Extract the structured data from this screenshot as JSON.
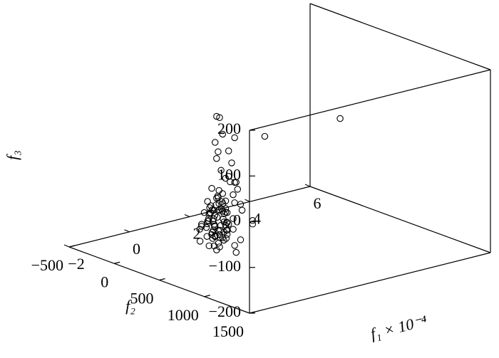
{
  "chart_data": {
    "type": "scatter3d",
    "xlabel": "f₁ × 10⁻⁴",
    "ylabel": "f₂",
    "zlabel": "f₃",
    "xlim": [
      -2,
      6
    ],
    "ylim": [
      -500,
      1500
    ],
    "zlim": [
      -200,
      200
    ],
    "xticks": [
      {
        "value": -2,
        "label": "−2"
      },
      0,
      2,
      4,
      6
    ],
    "yticks": [
      {
        "value": -500,
        "label": "−500"
      },
      0,
      500,
      1000,
      1500
    ],
    "zticks": [
      {
        "value": -200,
        "label": "−200"
      },
      {
        "value": -100,
        "label": "−100"
      },
      0,
      100,
      200
    ],
    "color": "#000000",
    "x": [
      0.4,
      0.5,
      0.6,
      0.3,
      0.7,
      0.45,
      0.55,
      0.35,
      0.65,
      0.5,
      0.25,
      0.75,
      0.4,
      0.6,
      0.5,
      0.3,
      0.7,
      0.45,
      0.55,
      0.35,
      0.8,
      0.2,
      0.6,
      0.5,
      0.4,
      0.65,
      0.3,
      0.55,
      0.45,
      0.7,
      0.5,
      0.6,
      0.35,
      0.75,
      0.25,
      0.5,
      0.4,
      0.65,
      0.55,
      0.45,
      0.8,
      0.3,
      0.6,
      0.5,
      0.7,
      0.4,
      0.55,
      0.35,
      0.65,
      0.5,
      0.9,
      1.0,
      0.1,
      0.0,
      0.2,
      0.9,
      1.1,
      0.6,
      0.3,
      0.8,
      1.0,
      0.4,
      -0.1,
      0.2,
      0.5,
      0.7,
      1.2,
      0.0,
      -0.2,
      0.3,
      -0.3,
      -0.5,
      -0.2,
      -0.4,
      0.0,
      -0.6,
      -0.1,
      -0.3,
      0.1,
      -0.5,
      -0.2,
      0.2,
      -0.7,
      -0.4,
      0.5,
      0.6,
      0.4,
      0.7,
      0.3,
      0.8,
      0.5,
      0.9,
      0.2,
      1.3,
      -1,
      5.5,
      2.1,
      1.5,
      1.1,
      0.9,
      1.3,
      0.6
    ],
    "y": [
      300,
      280,
      320,
      260,
      350,
      310,
      240,
      330,
      290,
      360,
      280,
      300,
      220,
      380,
      270,
      340,
      260,
      300,
      330,
      250,
      320,
      310,
      240,
      400,
      350,
      270,
      290,
      310,
      230,
      340,
      300,
      280,
      370,
      250,
      330,
      260,
      280,
      360,
      220,
      390,
      280,
      230,
      300,
      340,
      300,
      310,
      290,
      300,
      320,
      250,
      300,
      250,
      350,
      300,
      420,
      200,
      300,
      450,
      180,
      400,
      350,
      150,
      400,
      500,
      450,
      150,
      250,
      450,
      500,
      550,
      650,
      700,
      800,
      600,
      700,
      750,
      900,
      850,
      650,
      900,
      600,
      600,
      800,
      1000,
      300,
      250,
      350,
      300,
      400,
      200,
      500,
      300,
      450,
      200,
      900,
      0,
      300,
      100,
      200,
      100,
      150,
      100
    ],
    "z": [
      -120,
      -140,
      -100,
      -160,
      -130,
      -90,
      -170,
      -110,
      -150,
      -80,
      -130,
      -115,
      -145,
      -125,
      -105,
      -175,
      -95,
      -160,
      -135,
      -85,
      -150,
      -120,
      -140,
      -100,
      -70,
      -180,
      -95,
      -60,
      -125,
      -165,
      -190,
      -75,
      -140,
      -110,
      -150,
      -130,
      -55,
      -145,
      -100,
      -115,
      -175,
      -110,
      -185,
      -160,
      -70,
      -135,
      -120,
      -100,
      -90,
      -155,
      -140,
      -120,
      -100,
      -130,
      -90,
      -170,
      -190,
      -60,
      -150,
      -40,
      -200,
      -180,
      -110,
      -80,
      -30,
      -195,
      -160,
      -140,
      -120,
      -100,
      -90,
      -60,
      -120,
      -40,
      -20,
      -100,
      -80,
      -50,
      -10,
      -30,
      -130,
      -60,
      -80,
      -60,
      10,
      40,
      30,
      60,
      110,
      90,
      70,
      20,
      0,
      -20,
      35,
      -7,
      32,
      -60,
      -100,
      -130,
      -180,
      -150
    ]
  }
}
